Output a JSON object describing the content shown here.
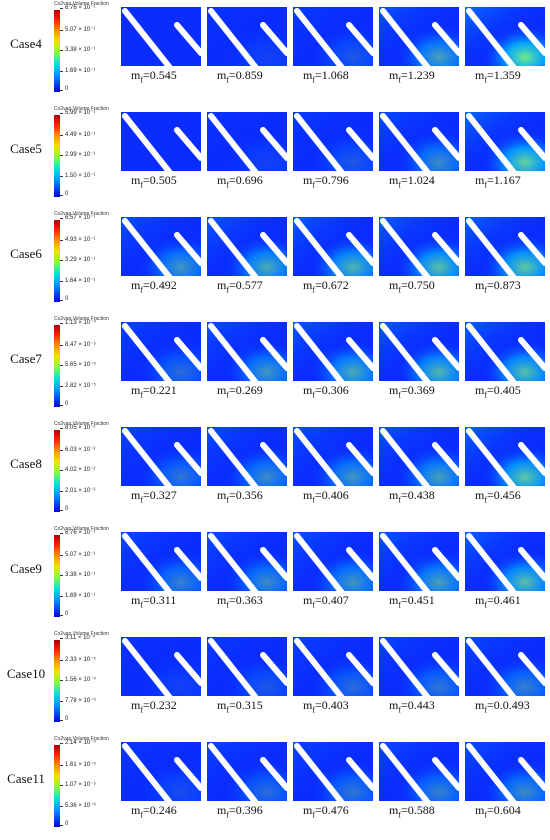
{
  "colorbar_title": "Co2vap.Volume Fraction",
  "mf_prefix": "m",
  "mf_sub": "f",
  "cases": [
    {
      "label": "Case4",
      "ticks": [
        "6.76 × 10⁻¹",
        "5.07 × 10⁻¹",
        "3.38 × 10⁻¹",
        "1.69 × 10⁻¹",
        "0"
      ],
      "mf": [
        "=0.545",
        "=0.859",
        "=1.068",
        "=1.239",
        "=1.359"
      ]
    },
    {
      "label": "Case5",
      "ticks": [
        "5.99 × 10⁻¹",
        "4.49 × 10⁻¹",
        "2.99 × 10⁻¹",
        "1.50 × 10⁻¹",
        "0"
      ],
      "mf": [
        "=0.505",
        "=0.696",
        "=0.796",
        "=1.024",
        "=1.167"
      ]
    },
    {
      "label": "Case6",
      "ticks": [
        "6.57 × 10⁻¹",
        "4.93 × 10⁻¹",
        "3.29 × 10⁻¹",
        "1.64 × 10⁻¹",
        "0"
      ],
      "mf": [
        "=0.492",
        "=0.577",
        "=0.672",
        "=0.750",
        "=0.873"
      ]
    },
    {
      "label": "Case7",
      "ticks": [
        "1.13 × 10⁻⁴",
        "8.47 × 10⁻⁵",
        "5.65 × 10⁻⁵",
        "2.82 × 10⁻⁵",
        "0"
      ],
      "mf": [
        "=0.221",
        "=0.269",
        "=0.306",
        "=0.369",
        "=0.405"
      ]
    },
    {
      "label": "Case8",
      "ticks": [
        "8.05 × 10⁻²",
        "6.03 × 10⁻²",
        "4.02 × 10⁻²",
        "2.01 × 10⁻²",
        "0"
      ],
      "mf": [
        "=0.327",
        "=0.356",
        "=0.406",
        "=0.438",
        "=0.456"
      ]
    },
    {
      "label": "Case9",
      "ticks": [
        "6.76 × 10⁻¹",
        "5.07 × 10⁻¹",
        "3.38 × 10⁻¹",
        "1.69 × 10⁻¹",
        "0"
      ],
      "mf": [
        "=0.311",
        "=0.363",
        "=0.407",
        "=0.451",
        "=0.461"
      ]
    },
    {
      "label": "Case10",
      "ticks": [
        "3.11 × 10⁻⁵",
        "2.33 × 10⁻⁵",
        "1.56 × 10⁻⁵",
        "7.78 × 10⁻⁶",
        "0"
      ],
      "mf": [
        "=0.232",
        "=0.315",
        "=0.403",
        "=0.443",
        "=0.0.493"
      ]
    },
    {
      "label": "Case11",
      "ticks": [
        "2.14 × 10⁻⁵",
        "1.61 × 10⁻⁵",
        "1.07 × 10⁻⁵",
        "5.36 × 10⁻⁶",
        "0"
      ],
      "mf": [
        "=0.246",
        "=0.396",
        "=0.476",
        "=0.588",
        "=0.604"
      ]
    }
  ]
}
